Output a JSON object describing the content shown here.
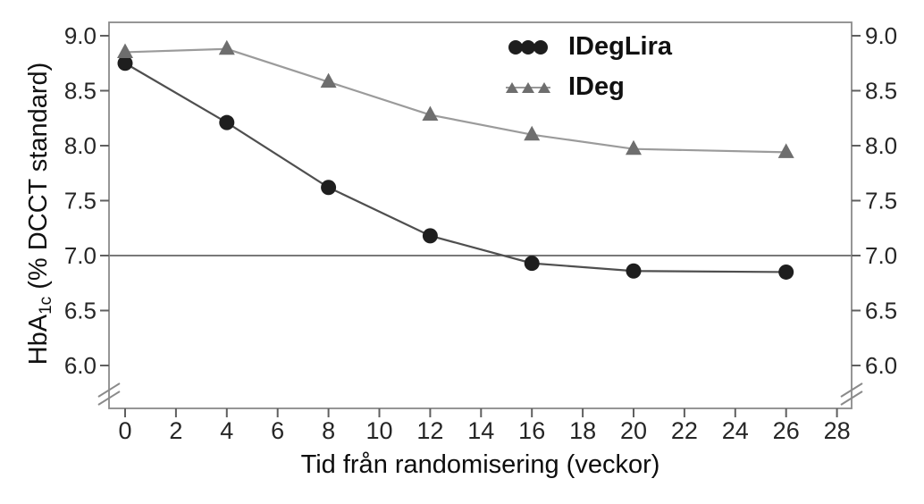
{
  "figure": {
    "ylabel_prefix": "HbA",
    "ylabel_sub": "1c",
    "ylabel_suffix": " (% DCCT standard)"
  },
  "chart_data": {
    "type": "line",
    "title": "",
    "xlabel": "Tid från randomisering (veckor)",
    "ylabel": "HbA1c (% DCCT standard)",
    "x_tick_labels": [
      "0",
      "2",
      "4",
      "6",
      "8",
      "10",
      "12",
      "14",
      "16",
      "18",
      "20",
      "22",
      "24",
      "26",
      "28"
    ],
    "y_tick_labels": [
      "6.0",
      "6.5",
      "7.0",
      "7.5",
      "8.0",
      "8.5",
      "9.0"
    ],
    "xlim": [
      -0.65,
      28.6
    ],
    "ylim": [
      6.0,
      9.0
    ],
    "y_axis_break_below": 6.0,
    "reference_line_y": 7.0,
    "grid": false,
    "legend_position": "inside-top-right",
    "axis_color": "#8a8a8a",
    "tick_color": "#5f5f5f",
    "tick_label_color": "#262626",
    "reference_line_color": "#4d4d4d",
    "x": [
      0,
      4,
      8,
      12,
      16,
      20,
      26
    ],
    "series": [
      {
        "name": "IDegLira",
        "marker": "circle",
        "marker_color": "#1e1e1e",
        "line_color": "#4f4f4f",
        "values": [
          8.75,
          8.21,
          7.62,
          7.18,
          6.93,
          6.86,
          6.85
        ]
      },
      {
        "name": "IDeg",
        "marker": "triangle",
        "marker_color": "#6e6e6e",
        "line_color": "#9b9b9b",
        "values": [
          8.85,
          8.88,
          8.58,
          8.28,
          8.1,
          7.97,
          7.94
        ]
      }
    ]
  }
}
